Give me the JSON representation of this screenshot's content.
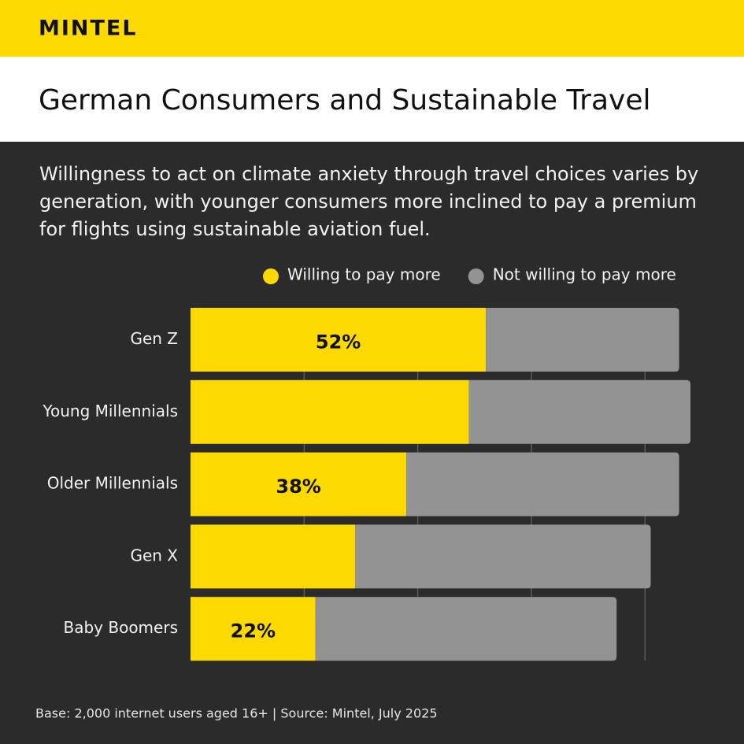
{
  "brand": "MINTEL",
  "chart_data": {
    "type": "stacked-bar-horizontal",
    "title": "German Consumers and Sustainable Travel",
    "subtitle": "Willingness to act on climate anxiety through travel choices varies by generation, with younger consumers more inclined to pay a premium for flights using sustainable aviation fuel.",
    "categories": [
      "Gen Z",
      "Young Millennials",
      "Older Millennials",
      "Gen X",
      "Baby Boomers"
    ],
    "series": [
      {
        "name": "Willing to pay more",
        "color": "#fcd900",
        "values": [
          52,
          49,
          38,
          29,
          22
        ],
        "value_labels": [
          "52%",
          null,
          "38%",
          null,
          "22%"
        ]
      },
      {
        "name": "Not willing to pay more",
        "color": "#939393",
        "values": [
          34,
          39,
          48,
          52,
          53
        ]
      }
    ],
    "xlim": [
      0,
      88
    ],
    "xticks": [
      20,
      40,
      60,
      80
    ],
    "grid": true,
    "source": "Base: 2,000 internet users aged 16+ | Source: Mintel, July 2025"
  }
}
